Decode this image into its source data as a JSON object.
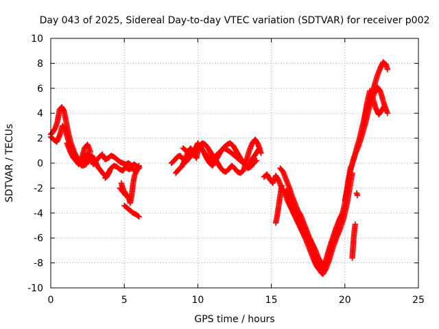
{
  "chart_data": {
    "type": "scatter",
    "title": "Day 043 of 2025, Sidereal Day-to-day VTEC variation (SDTVAR) for receiver p002",
    "xlabel": "GPS time / hours",
    "ylabel": "SDTVAR / TECUs",
    "xlim": [
      0,
      25
    ],
    "ylim": [
      -10,
      10
    ],
    "xticks": [
      "0",
      "5",
      "10",
      "15",
      "20",
      "25"
    ],
    "yticks": [
      "10",
      "8",
      "6",
      "4",
      "2",
      "0",
      "-2",
      "-4",
      "-6",
      "-8",
      "-10"
    ],
    "grid": true,
    "marker": "+",
    "color": "#ff0000",
    "series": [
      {
        "name": "SDTVAR",
        "segments": [
          {
            "x": [
              0.0,
              0.15,
              0.3,
              0.45,
              0.6,
              0.75,
              0.9,
              1.0,
              1.1,
              1.2,
              1.35,
              1.5,
              1.7,
              1.9,
              2.1,
              2.3,
              2.5,
              2.7,
              2.9,
              3.1,
              3.3,
              3.5,
              3.7,
              3.9,
              4.1,
              4.3,
              4.5,
              4.7,
              4.9,
              5.1,
              5.3,
              5.5,
              5.7,
              5.9,
              6.0
            ],
            "y": [
              2.3,
              2.5,
              2.8,
              3.3,
              4.3,
              4.5,
              4.2,
              3.6,
              3.0,
              2.4,
              1.7,
              1.2,
              0.6,
              0.1,
              -0.2,
              0.3,
              0.8,
              0.4,
              -0.1,
              0.2,
              0.5,
              0.7,
              0.3,
              0.4,
              0.6,
              0.5,
              0.3,
              0.1,
              0.0,
              -0.1,
              0.0,
              -0.2,
              -0.1,
              -0.3,
              -0.2
            ]
          },
          {
            "x": [
              0.0,
              0.2,
              0.4,
              0.6,
              0.8,
              1.0,
              1.2,
              1.4,
              1.6,
              1.8,
              2.0,
              2.2,
              2.4,
              2.6,
              2.8,
              3.0,
              3.2,
              3.4,
              3.6,
              3.8,
              4.0
            ],
            "y": [
              2.1,
              1.9,
              1.7,
              2.2,
              3.0,
              2.6,
              1.8,
              1.2,
              0.8,
              0.4,
              0.1,
              -0.2,
              -0.1,
              0.3,
              0.6,
              0.2,
              -0.3,
              -0.6,
              -0.9,
              -1.1,
              -0.7
            ]
          },
          {
            "x": [
              1.1,
              1.3,
              1.5,
              1.7,
              1.9,
              2.1,
              2.3,
              2.5,
              2.7
            ],
            "y": [
              1.6,
              1.0,
              0.5,
              0.2,
              -0.1,
              0.4,
              1.2,
              1.5,
              0.9
            ]
          },
          {
            "x": [
              3.7,
              3.9,
              4.1,
              4.3,
              4.5,
              4.7,
              4.9,
              5.1,
              5.3,
              5.5,
              5.7,
              5.9,
              6.0
            ],
            "y": [
              -1.2,
              -0.8,
              -0.4,
              -0.2,
              -0.3,
              -0.5,
              -0.6,
              -0.3,
              -0.5,
              -0.4,
              -0.6,
              -0.4,
              -0.3
            ]
          },
          {
            "x": [
              4.8,
              4.9,
              5.0,
              5.1,
              5.2,
              5.3,
              5.4,
              5.5,
              5.6,
              5.7,
              5.8,
              5.9,
              6.0
            ],
            "y": [
              -1.6,
              -2.0,
              -2.3,
              -2.5,
              -2.6,
              -2.8,
              -3.2,
              -2.6,
              -1.6,
              -1.0,
              -0.7,
              -0.5,
              -0.4
            ]
          },
          {
            "x": [
              4.7,
              4.8,
              4.9,
              5.0,
              5.1,
              5.2
            ],
            "y": [
              -2.0,
              -2.1,
              -2.3,
              -2.4,
              -2.6,
              -2.5
            ]
          },
          {
            "x": [
              5.0,
              5.2,
              5.4,
              5.6,
              5.8,
              6.0
            ],
            "y": [
              -3.4,
              -3.6,
              -3.8,
              -4.0,
              -4.1,
              -4.3
            ]
          },
          {
            "x": [
              8.2,
              8.4,
              8.6,
              8.8,
              9.0,
              9.2,
              9.4,
              9.6,
              9.8,
              10.0,
              10.2,
              10.4,
              10.6,
              10.8,
              11.0,
              11.2,
              11.4,
              11.6,
              11.8,
              12.0,
              12.2,
              12.4,
              12.6,
              12.8,
              13.0,
              13.2,
              13.4,
              13.6,
              13.8,
              14.0
            ],
            "y": [
              0.0,
              0.2,
              0.5,
              0.6,
              0.3,
              0.1,
              0.4,
              0.7,
              0.9,
              1.2,
              1.3,
              0.9,
              0.4,
              0.0,
              -0.2,
              0.2,
              0.6,
              1.0,
              1.3,
              1.5,
              1.6,
              1.4,
              1.0,
              0.6,
              0.2,
              -0.1,
              -0.4,
              -0.3,
              0.0,
              0.2
            ]
          },
          {
            "x": [
              8.5,
              8.7,
              8.9,
              9.1,
              9.3,
              9.5,
              9.7,
              9.9,
              10.1,
              10.3,
              10.5,
              10.7,
              10.9,
              11.1,
              11.3,
              11.5,
              11.7,
              11.9,
              12.1,
              12.3,
              12.5,
              12.7,
              12.9,
              13.1,
              13.3,
              13.5,
              13.7,
              13.9,
              14.1,
              14.3
            ],
            "y": [
              -0.8,
              -0.5,
              -0.3,
              0.2,
              0.8,
              1.2,
              0.9,
              0.4,
              1.4,
              1.6,
              1.5,
              1.2,
              0.8,
              0.5,
              0.1,
              -0.3,
              -0.6,
              -0.7,
              -0.5,
              -0.2,
              -0.4,
              -0.7,
              -0.8,
              -0.6,
              0.2,
              1.0,
              1.6,
              1.9,
              1.5,
              0.8
            ]
          },
          {
            "x": [
              9.0,
              9.2,
              9.4,
              9.6,
              10.0,
              10.3,
              10.6,
              11.0,
              11.4,
              11.8,
              12.2,
              12.6,
              13.0,
              13.4,
              13.8,
              14.2
            ],
            "y": [
              1.2,
              1.0,
              0.8,
              0.6,
              1.6,
              1.1,
              0.6,
              0.3,
              0.8,
              1.2,
              0.9,
              0.5,
              0.1,
              -0.3,
              0.5,
              1.2
            ]
          },
          {
            "x": [
              14.5,
              14.7,
              14.9,
              15.1,
              15.3,
              15.5,
              15.7,
              15.9,
              16.1,
              16.3,
              16.5,
              16.7,
              16.9,
              17.1,
              17.3,
              17.5,
              17.7,
              17.9,
              18.1,
              18.3,
              18.5,
              18.7,
              18.9,
              19.1,
              19.3,
              19.5,
              19.7,
              19.9,
              20.1,
              20.3,
              20.5
            ],
            "y": [
              -1.1,
              -0.9,
              -1.3,
              -1.6,
              -1.0,
              -1.4,
              -2.0,
              -2.4,
              -3.0,
              -3.5,
              -4.0,
              -4.5,
              -5.0,
              -5.5,
              -6.0,
              -6.6,
              -7.2,
              -7.8,
              -8.3,
              -8.6,
              -8.9,
              -8.5,
              -7.9,
              -7.1,
              -6.4,
              -5.8,
              -5.2,
              -4.5,
              -3.5,
              -2.2,
              -0.8
            ]
          },
          {
            "x": [
              15.6,
              15.8,
              16.0,
              16.2,
              16.4,
              16.6,
              16.8,
              17.0,
              17.2,
              17.4,
              17.6,
              17.8,
              18.0,
              18.2,
              18.4,
              18.6,
              18.8,
              19.0,
              19.2,
              19.4,
              19.6,
              19.8,
              20.0,
              20.2,
              20.4
            ],
            "y": [
              -0.4,
              -0.7,
              -1.3,
              -1.9,
              -2.6,
              -3.2,
              -3.8,
              -4.2,
              -4.8,
              -5.4,
              -6.0,
              -6.5,
              -7.0,
              -7.6,
              -8.0,
              -8.3,
              -7.6,
              -6.9,
              -6.2,
              -5.4,
              -4.8,
              -4.2,
              -3.2,
              -1.6,
              -0.3
            ]
          },
          {
            "x": [
              16.0,
              16.2,
              16.4,
              16.6,
              16.8,
              17.0,
              17.2,
              17.4,
              17.6,
              17.8,
              18.0,
              18.2,
              18.4,
              18.6,
              18.8,
              19.0,
              19.2,
              19.4,
              19.6,
              19.8
            ],
            "y": [
              -2.2,
              -2.6,
              -3.0,
              -3.6,
              -4.2,
              -4.6,
              -5.0,
              -5.7,
              -6.2,
              -6.9,
              -7.6,
              -8.1,
              -8.8,
              -8.3,
              -7.4,
              -6.6,
              -5.9,
              -5.2,
              -4.6,
              -4.1
            ]
          },
          {
            "x": [
              15.3,
              15.4,
              15.5,
              15.6,
              15.7
            ],
            "y": [
              -4.8,
              -4.2,
              -3.4,
              -2.6,
              -1.8
            ]
          },
          {
            "x": [
              20.0,
              20.2,
              20.4,
              20.6,
              20.8,
              21.0,
              21.2,
              21.4,
              21.6,
              21.8,
              22.0,
              22.2,
              22.4,
              22.6,
              22.8,
              22.9
            ],
            "y": [
              -3.0,
              -1.8,
              -0.4,
              0.3,
              1.2,
              2.0,
              3.0,
              4.0,
              4.8,
              5.5,
              6.2,
              7.0,
              7.6,
              8.1,
              7.9,
              7.5
            ]
          },
          {
            "x": [
              20.4,
              20.6,
              20.8,
              21.0,
              21.2,
              21.4,
              21.6,
              21.8,
              22.0,
              22.2,
              22.4,
              22.6,
              22.8
            ],
            "y": [
              -0.5,
              0.4,
              1.0,
              1.6,
              2.4,
              3.2,
              4.2,
              5.0,
              5.6,
              6.1,
              5.8,
              5.0,
              4.2
            ]
          },
          {
            "x": [
              21.3,
              21.5,
              21.7,
              21.9,
              22.1,
              22.3,
              22.5,
              22.7,
              22.9
            ],
            "y": [
              3.4,
              4.8,
              5.8,
              5.2,
              4.4,
              3.9,
              4.2,
              4.6,
              4.0
            ]
          },
          {
            "x": [
              20.5,
              20.55,
              20.6,
              20.65,
              20.7
            ],
            "y": [
              -7.6,
              -6.8,
              -6.0,
              -5.4,
              -4.9
            ]
          },
          {
            "x": [
              20.8,
              20.85
            ],
            "y": [
              -2.4,
              -2.6
            ]
          }
        ]
      }
    ]
  }
}
